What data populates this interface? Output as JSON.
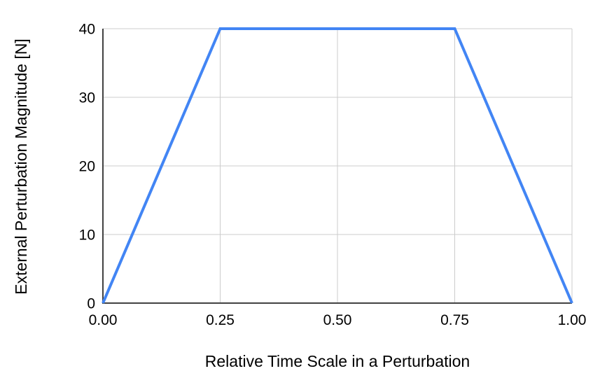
{
  "chart_data": {
    "type": "line",
    "title": "",
    "xlabel": "Relative Time Scale in a Perturbation",
    "ylabel": "External Perturbation Magnitude [N]",
    "xlim": [
      0,
      1
    ],
    "ylim": [
      0,
      40
    ],
    "grid": true,
    "legend": "none",
    "points": [
      {
        "x": 0.0,
        "y": 0
      },
      {
        "x": 0.25,
        "y": 40
      },
      {
        "x": 0.75,
        "y": 40
      },
      {
        "x": 1.0,
        "y": 0
      }
    ],
    "x_ticks": [
      {
        "value": 0.0,
        "label": "0.00"
      },
      {
        "value": 0.25,
        "label": "0.25"
      },
      {
        "value": 0.5,
        "label": "0.50"
      },
      {
        "value": 0.75,
        "label": "0.75"
      },
      {
        "value": 1.0,
        "label": "1.00"
      }
    ],
    "y_ticks": [
      {
        "value": 0,
        "label": "0"
      },
      {
        "value": 10,
        "label": "10"
      },
      {
        "value": 20,
        "label": "20"
      },
      {
        "value": 30,
        "label": "30"
      },
      {
        "value": 40,
        "label": "40"
      }
    ],
    "colors": {
      "line": "#4285F4",
      "axis": "#424242",
      "grid": "#cccccc",
      "text": "#000000",
      "background": "#ffffff"
    },
    "line_width": 4
  }
}
